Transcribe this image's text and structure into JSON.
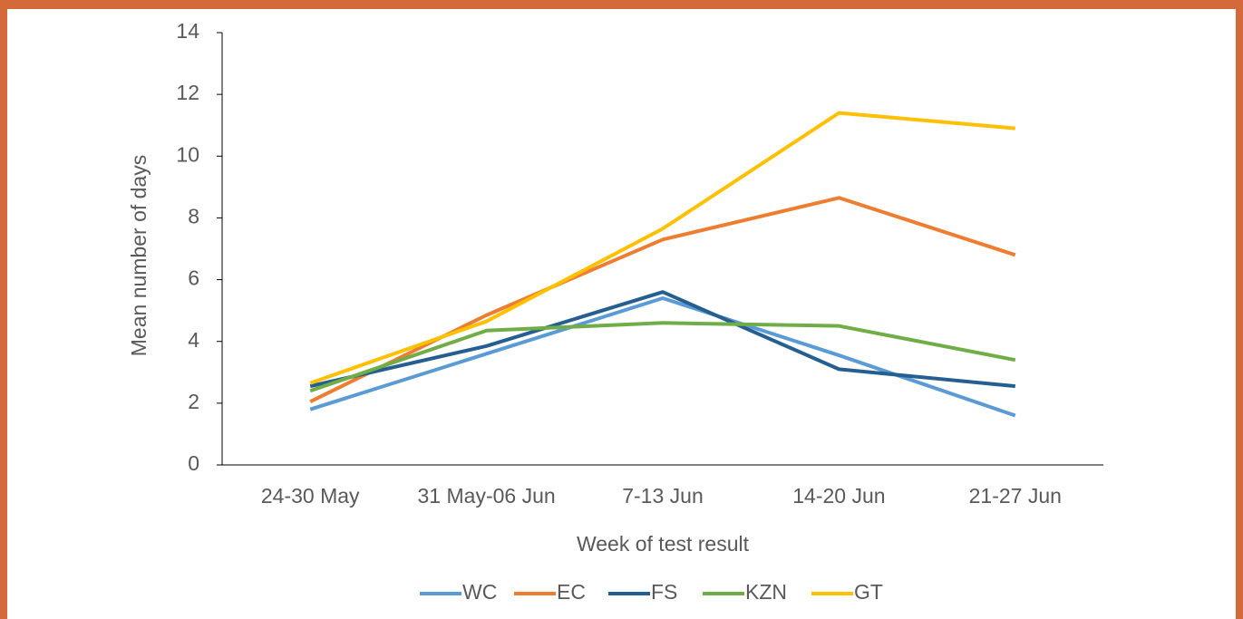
{
  "chart_data": {
    "type": "line",
    "categories": [
      "24-30 May",
      "31 May-06 Jun",
      "7-13 Jun",
      "14-20 Jun",
      "21-27 Jun"
    ],
    "xlabel": "Week of test result",
    "ylabel": "Mean number of days",
    "ylim": [
      0,
      14
    ],
    "yticks": [
      0,
      2,
      4,
      6,
      8,
      10,
      12,
      14
    ],
    "grid": false,
    "legend": "bottom",
    "series": [
      {
        "name": "WC",
        "color": "#5b9bd5",
        "values": [
          1.8,
          3.6,
          5.4,
          3.55,
          1.6
        ]
      },
      {
        "name": "EC",
        "color": "#ed7d31",
        "values": [
          2.05,
          4.85,
          7.3,
          8.65,
          6.8
        ]
      },
      {
        "name": "FS",
        "color": "#255e91",
        "values": [
          2.55,
          3.85,
          5.6,
          3.1,
          2.55
        ]
      },
      {
        "name": "KZN",
        "color": "#70ad47",
        "values": [
          2.4,
          4.35,
          4.6,
          4.5,
          3.4
        ]
      },
      {
        "name": "GT",
        "color": "#ffc000",
        "values": [
          2.65,
          4.65,
          7.65,
          11.4,
          10.9
        ]
      }
    ]
  }
}
